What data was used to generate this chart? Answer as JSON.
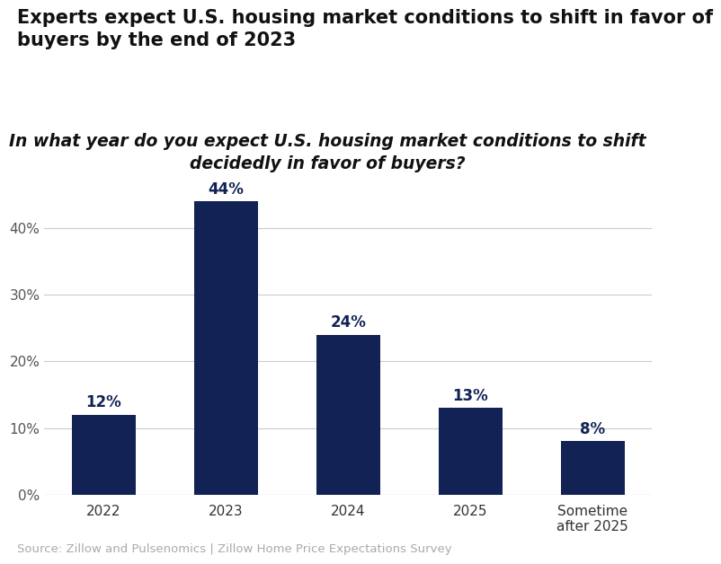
{
  "title": "Experts expect U.S. housing market conditions to shift in favor of\nbuyers by the end of 2023",
  "subtitle": "In what year do you expect U.S. housing market conditions to shift\ndecidedly in favor of buyers?",
  "source": "Source: Zillow and Pulsenomics | Zillow Home Price Expectations Survey",
  "categories": [
    "2022",
    "2023",
    "2024",
    "2025",
    "Sometime\nafter 2025"
  ],
  "values": [
    12,
    44,
    24,
    13,
    8
  ],
  "bar_color": "#122254",
  "label_color": "#122254",
  "title_color": "#111111",
  "subtitle_color": "#111111",
  "source_color": "#aaaaaa",
  "background_color": "#ffffff",
  "ylim": [
    0,
    50
  ],
  "yticks": [
    0,
    10,
    20,
    30,
    40
  ],
  "ytick_labels": [
    "0%",
    "10%",
    "20%",
    "30%",
    "40%"
  ],
  "title_fontsize": 15,
  "subtitle_fontsize": 13.5,
  "label_fontsize": 12,
  "tick_fontsize": 11,
  "source_fontsize": 9.5
}
